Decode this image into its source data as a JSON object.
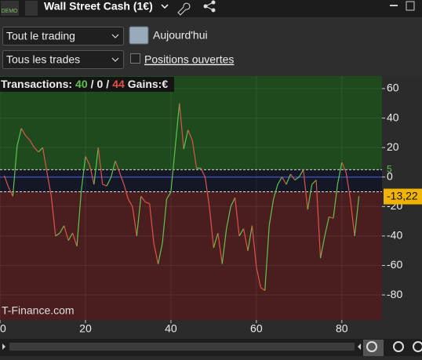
{
  "toolbar": {
    "badge": "DEMO",
    "instrument": "Wall Street Cash (1€)"
  },
  "filters": {
    "scope": "Tout le trading",
    "period": "Aujourd'hui",
    "trades": "Tous les trades",
    "open_positions": "Positions ouvertes"
  },
  "chart_data": {
    "type": "line",
    "summary": {
      "label": "Transactions:",
      "winners": 40,
      "sep1": "/",
      "neutral": 0,
      "sep2": "/",
      "losers": 44,
      "gains": "Gains:€"
    },
    "watermark": "T-Finance.com",
    "x": [
      1,
      2,
      3,
      4,
      5,
      6,
      7,
      8,
      9,
      10,
      11,
      12,
      13,
      14,
      15,
      16,
      17,
      18,
      19,
      20,
      21,
      22,
      23,
      24,
      25,
      26,
      27,
      28,
      29,
      30,
      31,
      32,
      33,
      34,
      35,
      36,
      37,
      38,
      39,
      40,
      41,
      42,
      43,
      44,
      45,
      46,
      47,
      48,
      49,
      50,
      51,
      52,
      53,
      54,
      55,
      56,
      57,
      58,
      59,
      60,
      61,
      62,
      63,
      64,
      65,
      66,
      67,
      68,
      69,
      70,
      71,
      72,
      73,
      74,
      75,
      76,
      77,
      78,
      79,
      80,
      81,
      82,
      83,
      84
    ],
    "values": [
      1,
      -7,
      -13,
      21,
      33,
      28,
      25,
      20,
      17,
      20,
      3,
      -13,
      -40,
      -38,
      -33,
      -43,
      -38,
      -47,
      -10,
      14,
      8,
      -5,
      20,
      -5,
      -6,
      0,
      11,
      3,
      -5,
      -15,
      -20,
      -40,
      -13,
      -17,
      -18,
      -45,
      -59,
      -45,
      -15,
      -10,
      20,
      50,
      19,
      32,
      25,
      6,
      6,
      0,
      -20,
      -48,
      -38,
      -59,
      -35,
      -20,
      -14,
      -40,
      -35,
      -50,
      -33,
      -61,
      -75,
      -77,
      -33,
      -15,
      -5,
      0,
      -5,
      2,
      -2,
      0,
      5,
      -22,
      -5,
      -2,
      -55,
      -40,
      -27,
      -28,
      -5,
      10,
      3,
      -15,
      -40,
      -13
    ],
    "up_color": "#5fc44f",
    "down_color": "#e0534a",
    "upper_threshold": 5,
    "lower_threshold": -10,
    "last_value": -13.22,
    "last_value_label": "-13,22",
    "xlim": [
      0,
      89.4
    ],
    "ylim": [
      -97,
      68.5
    ],
    "xticks": [
      0,
      20,
      40,
      60,
      80
    ],
    "yticks": [
      60,
      40,
      20,
      0,
      -20,
      -40,
      -60,
      -80
    ],
    "grid": true
  }
}
